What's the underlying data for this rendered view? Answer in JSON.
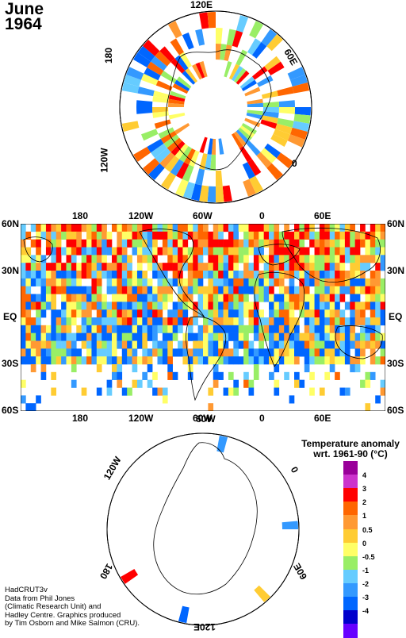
{
  "title": {
    "month": "June",
    "year": "1964"
  },
  "north_polar": {
    "labels": [
      "120E",
      "60E",
      "0",
      "120W",
      "180"
    ]
  },
  "world_map": {
    "top_longitudes": [
      "180",
      "120W",
      "60W",
      "0",
      "60E"
    ],
    "bottom_longitudes": [
      "180",
      "120W",
      "60W",
      "0",
      "60E"
    ],
    "left_latitudes": [
      "60N",
      "30N",
      "EQ",
      "30S",
      "60S"
    ],
    "right_latitudes": [
      "60N",
      "30N",
      "EQ",
      "30S",
      "60S"
    ]
  },
  "south_polar": {
    "labels": [
      "120W",
      "60W",
      "0",
      "180",
      "60E",
      "120E"
    ]
  },
  "legend": {
    "title_line1": "Temperature anomaly",
    "title_line2": "wrt. 1961-90  (°C)",
    "bins": [
      {
        "label": "4",
        "color": "#990099"
      },
      {
        "label": "3",
        "color": "#cc33cc"
      },
      {
        "label": "2",
        "color": "#ff0000"
      },
      {
        "label": "1",
        "color": "#ff6600"
      },
      {
        "label": "0.5",
        "color": "#ff9933"
      },
      {
        "label": "0",
        "color": "#ffcc33"
      },
      {
        "label": "-0.5",
        "color": "#ffff66"
      },
      {
        "label": "-1",
        "color": "#99ee66"
      },
      {
        "label": "-2",
        "color": "#66ccff"
      },
      {
        "label": "-3",
        "color": "#3399ff"
      },
      {
        "label": "-4",
        "color": "#0066ff"
      },
      {
        "label": "",
        "color": "#0000cc"
      },
      {
        "label": "",
        "color": "#6600ff"
      }
    ]
  },
  "credits": {
    "line1": "HadCRUT3v",
    "line2": "Data from Phil Jones",
    "line3": "(Climatic Research Unit) and",
    "line4": "Hadley Centre.  Graphics produced",
    "line5": "by Tim Osborn and Mike Salmon (CRU)."
  },
  "colors": {
    "land_outline": "#000000",
    "background": "#ffffff"
  }
}
